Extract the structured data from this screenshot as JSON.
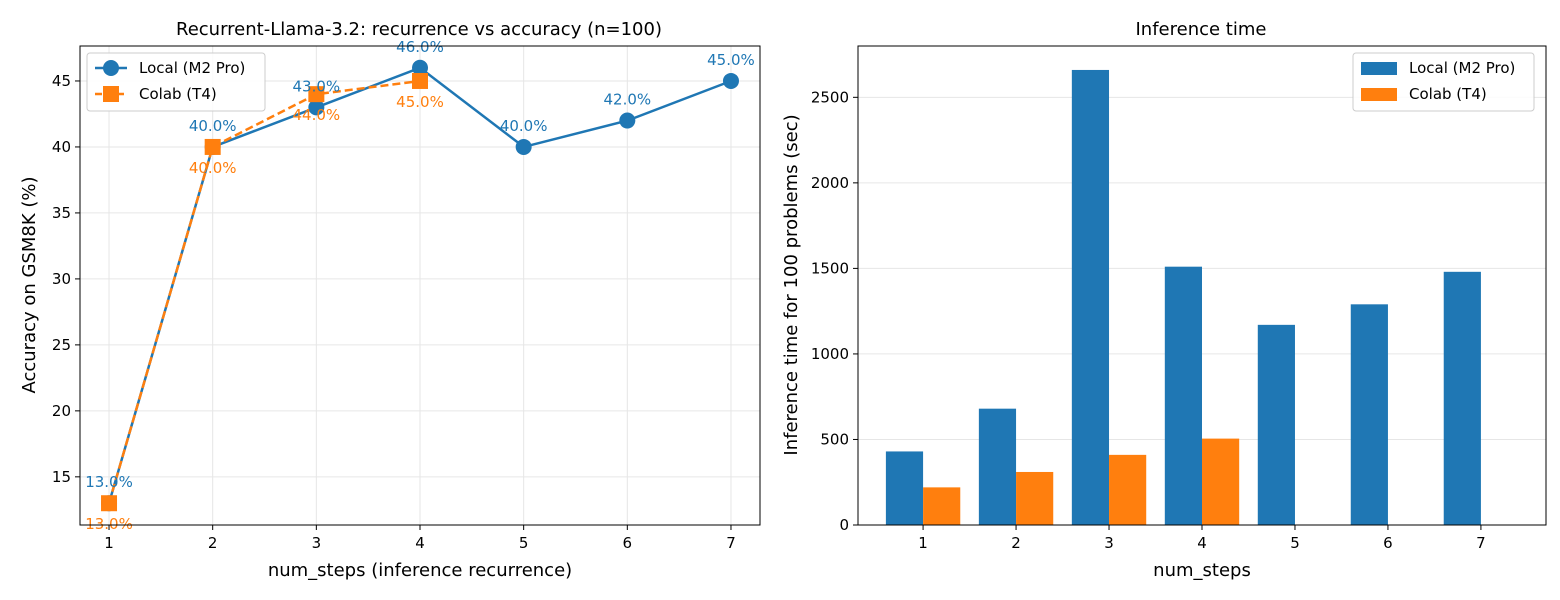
{
  "chart_data": [
    {
      "type": "line",
      "title": "Recurrent-Llama-3.2: recurrence vs accuracy (n=100)",
      "xlabel": "num_steps (inference recurrence)",
      "ylabel": "Accuracy on GSM8K (%)",
      "xlim": [
        0.72,
        7.28
      ],
      "ylim": [
        11.35,
        47.65
      ],
      "xticks": [
        "1",
        "2",
        "3",
        "4",
        "5",
        "6",
        "7"
      ],
      "yticks": [
        "15",
        "20",
        "25",
        "30",
        "35",
        "40",
        "45"
      ],
      "grid": true,
      "legend": "top-left",
      "series": [
        {
          "name": "Local (M2 Pro)",
          "color": "#1f77b4",
          "marker": "circle",
          "linestyle": "solid",
          "x": [
            1,
            2,
            3,
            4,
            5,
            6,
            7
          ],
          "values": [
            13,
            40,
            43,
            46,
            40,
            42,
            45
          ],
          "labels": [
            "13.0%",
            "40.0%",
            "43.0%",
            "46.0%",
            "40.0%",
            "42.0%",
            "45.0%"
          ]
        },
        {
          "name": "Colab (T4)",
          "color": "#ff7f0e",
          "marker": "square",
          "linestyle": "dashed",
          "x": [
            1,
            2,
            3,
            4
          ],
          "values": [
            13,
            40,
            44,
            45
          ],
          "labels": [
            "13.0%",
            "40.0%",
            "44.0%",
            "45.0%"
          ]
        }
      ]
    },
    {
      "type": "bar",
      "title": "Inference time",
      "xlabel": "num_steps",
      "ylabel": "Inference time for 100 problems (sec)",
      "categories": [
        "1",
        "2",
        "3",
        "4",
        "5",
        "6",
        "7"
      ],
      "ylim": [
        0,
        2800
      ],
      "yticks": [
        "0",
        "500",
        "1000",
        "1500",
        "2000",
        "2500"
      ],
      "grid": true,
      "legend": "top-right",
      "series": [
        {
          "name": "Local (M2 Pro)",
          "color": "#1f77b4",
          "values": [
            430,
            680,
            2660,
            1510,
            1170,
            1290,
            1480
          ]
        },
        {
          "name": "Colab (T4)",
          "color": "#ff7f0e",
          "values": [
            220,
            310,
            410,
            505,
            null,
            null,
            null
          ]
        }
      ]
    }
  ]
}
